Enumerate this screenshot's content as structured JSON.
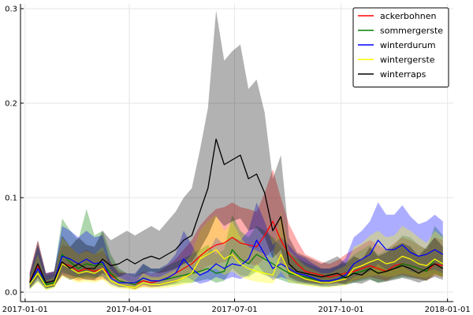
{
  "chart_data": {
    "type": "line",
    "title": "",
    "xlabel": "",
    "ylabel": "",
    "xlim": [
      "2016-12-28",
      "2018-01-06"
    ],
    "ylim": [
      -0.01,
      0.305
    ],
    "x_ticks": [
      "2017-01-01",
      "2017-04-01",
      "2017-07-01",
      "2017-10-01",
      "2018-01-01"
    ],
    "x_tick_labels": [
      "2017-01-01",
      "2017-04-01",
      "2017-07-01",
      "2017-10-01",
      "2018-01-01"
    ],
    "y_ticks": [
      0.0,
      0.1,
      0.2,
      0.3
    ],
    "y_tick_labels": [
      "0.0",
      "0.1",
      "0.2",
      "0.3"
    ],
    "grid": true,
    "legend_position": "top-right",
    "x": [
      "2017-01-05",
      "2017-01-12",
      "2017-01-19",
      "2017-01-26",
      "2017-02-02",
      "2017-02-09",
      "2017-02-16",
      "2017-02-23",
      "2017-03-02",
      "2017-03-09",
      "2017-03-16",
      "2017-03-23",
      "2017-03-30",
      "2017-04-06",
      "2017-04-13",
      "2017-04-20",
      "2017-04-27",
      "2017-05-04",
      "2017-05-11",
      "2017-05-18",
      "2017-05-25",
      "2017-06-01",
      "2017-06-08",
      "2017-06-15",
      "2017-06-22",
      "2017-06-29",
      "2017-07-06",
      "2017-07-13",
      "2017-07-20",
      "2017-07-27",
      "2017-08-03",
      "2017-08-10",
      "2017-08-17",
      "2017-08-24",
      "2017-08-31",
      "2017-09-07",
      "2017-09-14",
      "2017-09-21",
      "2017-09-28",
      "2017-10-05",
      "2017-10-12",
      "2017-10-19",
      "2017-10-26",
      "2017-11-02",
      "2017-11-09",
      "2017-11-16",
      "2017-11-23",
      "2017-11-30",
      "2017-12-07",
      "2017-12-14",
      "2017-12-21",
      "2017-12-28"
    ],
    "series": [
      {
        "name": "ackerbohnen",
        "color": "#ff0000",
        "values": [
          0.012,
          0.028,
          0.01,
          0.012,
          0.03,
          0.028,
          0.022,
          0.025,
          0.022,
          0.025,
          0.018,
          0.012,
          0.01,
          0.008,
          0.012,
          0.01,
          0.012,
          0.015,
          0.02,
          0.025,
          0.03,
          0.038,
          0.045,
          0.05,
          0.052,
          0.058,
          0.052,
          0.05,
          0.048,
          0.06,
          0.075,
          0.055,
          0.04,
          0.03,
          0.022,
          0.02,
          0.018,
          0.016,
          0.018,
          0.02,
          0.022,
          0.025,
          0.028,
          0.025,
          0.022,
          0.028,
          0.03,
          0.028,
          0.025,
          0.022,
          0.03,
          0.028
        ],
        "lower": [
          0.005,
          0.015,
          0.005,
          0.006,
          0.018,
          0.015,
          0.012,
          0.014,
          0.012,
          0.014,
          0.01,
          0.006,
          0.005,
          0.003,
          0.006,
          0.005,
          0.006,
          0.008,
          0.01,
          0.014,
          0.018,
          0.022,
          0.028,
          0.03,
          0.032,
          0.036,
          0.032,
          0.03,
          0.028,
          0.036,
          0.045,
          0.03,
          0.022,
          0.016,
          0.012,
          0.01,
          0.009,
          0.008,
          0.009,
          0.01,
          0.012,
          0.014,
          0.016,
          0.014,
          0.012,
          0.016,
          0.018,
          0.016,
          0.014,
          0.012,
          0.018,
          0.016
        ],
        "upper": [
          0.022,
          0.055,
          0.02,
          0.022,
          0.05,
          0.048,
          0.04,
          0.045,
          0.04,
          0.044,
          0.032,
          0.022,
          0.02,
          0.016,
          0.022,
          0.02,
          0.022,
          0.028,
          0.035,
          0.045,
          0.055,
          0.07,
          0.08,
          0.088,
          0.09,
          0.095,
          0.09,
          0.088,
          0.085,
          0.105,
          0.13,
          0.1,
          0.072,
          0.055,
          0.04,
          0.036,
          0.032,
          0.03,
          0.034,
          0.04,
          0.045,
          0.05,
          0.055,
          0.05,
          0.045,
          0.052,
          0.058,
          0.055,
          0.05,
          0.045,
          0.058,
          0.055
        ]
      },
      {
        "name": "sommergerste",
        "color": "#008000",
        "values": [
          0.008,
          0.025,
          0.008,
          0.01,
          0.04,
          0.032,
          0.025,
          0.03,
          0.028,
          0.03,
          0.02,
          0.012,
          0.01,
          0.008,
          0.015,
          0.012,
          0.012,
          0.014,
          0.016,
          0.018,
          0.02,
          0.022,
          0.025,
          0.02,
          0.022,
          0.045,
          0.035,
          0.03,
          0.04,
          0.035,
          0.03,
          0.025,
          0.02,
          0.018,
          0.016,
          0.014,
          0.012,
          0.012,
          0.014,
          0.016,
          0.02,
          0.022,
          0.025,
          0.02,
          0.022,
          0.025,
          0.03,
          0.028,
          0.025,
          0.022,
          0.035,
          0.03
        ],
        "lower": [
          0.003,
          0.012,
          0.003,
          0.005,
          0.022,
          0.018,
          0.014,
          0.016,
          0.015,
          0.016,
          0.01,
          0.006,
          0.005,
          0.003,
          0.008,
          0.006,
          0.006,
          0.007,
          0.008,
          0.01,
          0.01,
          0.012,
          0.014,
          0.01,
          0.012,
          0.025,
          0.018,
          0.016,
          0.022,
          0.018,
          0.016,
          0.013,
          0.01,
          0.009,
          0.008,
          0.007,
          0.006,
          0.006,
          0.007,
          0.008,
          0.01,
          0.012,
          0.014,
          0.01,
          0.012,
          0.014,
          0.016,
          0.015,
          0.014,
          0.012,
          0.02,
          0.016
        ],
        "upper": [
          0.018,
          0.05,
          0.018,
          0.02,
          0.078,
          0.065,
          0.055,
          0.088,
          0.06,
          0.065,
          0.04,
          0.025,
          0.02,
          0.018,
          0.03,
          0.025,
          0.025,
          0.028,
          0.032,
          0.036,
          0.04,
          0.045,
          0.05,
          0.04,
          0.045,
          0.082,
          0.065,
          0.058,
          0.07,
          0.065,
          0.058,
          0.048,
          0.04,
          0.036,
          0.032,
          0.028,
          0.025,
          0.025,
          0.028,
          0.032,
          0.04,
          0.045,
          0.05,
          0.04,
          0.045,
          0.05,
          0.06,
          0.058,
          0.05,
          0.045,
          0.07,
          0.06
        ]
      },
      {
        "name": "winterdurum",
        "color": "#0000ff",
        "values": [
          0.01,
          0.025,
          0.01,
          0.012,
          0.038,
          0.035,
          0.03,
          0.035,
          0.03,
          0.032,
          0.015,
          0.01,
          0.01,
          0.01,
          0.015,
          0.012,
          0.012,
          0.015,
          0.02,
          0.035,
          0.025,
          0.018,
          0.022,
          0.03,
          0.025,
          0.03,
          0.028,
          0.035,
          0.055,
          0.04,
          0.025,
          0.03,
          0.025,
          0.02,
          0.018,
          0.015,
          0.012,
          0.012,
          0.014,
          0.018,
          0.03,
          0.035,
          0.04,
          0.055,
          0.045,
          0.045,
          0.05,
          0.042,
          0.038,
          0.04,
          0.045,
          0.04
        ],
        "lower": [
          0.004,
          0.012,
          0.004,
          0.006,
          0.02,
          0.018,
          0.016,
          0.018,
          0.016,
          0.017,
          0.008,
          0.005,
          0.005,
          0.005,
          0.008,
          0.006,
          0.006,
          0.008,
          0.01,
          0.018,
          0.013,
          0.009,
          0.011,
          0.016,
          0.013,
          0.016,
          0.014,
          0.018,
          0.03,
          0.02,
          0.013,
          0.016,
          0.013,
          0.01,
          0.009,
          0.008,
          0.006,
          0.006,
          0.007,
          0.009,
          0.016,
          0.018,
          0.022,
          0.03,
          0.024,
          0.024,
          0.028,
          0.022,
          0.02,
          0.022,
          0.024,
          0.02
        ],
        "upper": [
          0.02,
          0.05,
          0.02,
          0.022,
          0.07,
          0.065,
          0.058,
          0.065,
          0.058,
          0.06,
          0.03,
          0.02,
          0.02,
          0.02,
          0.03,
          0.025,
          0.025,
          0.03,
          0.04,
          0.065,
          0.05,
          0.035,
          0.042,
          0.058,
          0.05,
          0.058,
          0.055,
          0.065,
          0.095,
          0.075,
          0.05,
          0.058,
          0.05,
          0.04,
          0.036,
          0.03,
          0.025,
          0.025,
          0.028,
          0.036,
          0.058,
          0.065,
          0.075,
          0.095,
          0.082,
          0.082,
          0.092,
          0.08,
          0.072,
          0.075,
          0.082,
          0.075
        ]
      },
      {
        "name": "wintergerste",
        "color": "#ffff00",
        "values": [
          0.008,
          0.02,
          0.006,
          0.008,
          0.03,
          0.025,
          0.02,
          0.022,
          0.02,
          0.025,
          0.012,
          0.008,
          0.006,
          0.005,
          0.01,
          0.008,
          0.008,
          0.01,
          0.012,
          0.015,
          0.02,
          0.035,
          0.04,
          0.045,
          0.035,
          0.04,
          0.03,
          0.025,
          0.022,
          0.02,
          0.018,
          0.04,
          0.022,
          0.018,
          0.014,
          0.012,
          0.01,
          0.01,
          0.012,
          0.014,
          0.025,
          0.028,
          0.032,
          0.035,
          0.03,
          0.032,
          0.038,
          0.035,
          0.03,
          0.028,
          0.035,
          0.03
        ],
        "lower": [
          0.003,
          0.01,
          0.002,
          0.004,
          0.016,
          0.013,
          0.01,
          0.011,
          0.01,
          0.013,
          0.006,
          0.004,
          0.003,
          0.002,
          0.005,
          0.004,
          0.004,
          0.005,
          0.006,
          0.008,
          0.01,
          0.018,
          0.022,
          0.025,
          0.018,
          0.022,
          0.016,
          0.013,
          0.011,
          0.01,
          0.009,
          0.022,
          0.011,
          0.009,
          0.007,
          0.006,
          0.005,
          0.005,
          0.006,
          0.007,
          0.013,
          0.015,
          0.017,
          0.018,
          0.016,
          0.017,
          0.02,
          0.018,
          0.016,
          0.015,
          0.018,
          0.016
        ],
        "upper": [
          0.016,
          0.04,
          0.012,
          0.016,
          0.058,
          0.048,
          0.04,
          0.044,
          0.04,
          0.048,
          0.024,
          0.016,
          0.012,
          0.01,
          0.02,
          0.016,
          0.016,
          0.02,
          0.024,
          0.03,
          0.04,
          0.065,
          0.075,
          0.082,
          0.065,
          0.075,
          0.058,
          0.048,
          0.044,
          0.04,
          0.036,
          0.085,
          0.044,
          0.036,
          0.028,
          0.024,
          0.02,
          0.02,
          0.024,
          0.028,
          0.048,
          0.052,
          0.06,
          0.065,
          0.058,
          0.06,
          0.07,
          0.065,
          0.058,
          0.052,
          0.065,
          0.058
        ]
      },
      {
        "name": "winterraps",
        "color": "#000000",
        "values": [
          0.01,
          0.03,
          0.01,
          0.012,
          0.032,
          0.025,
          0.03,
          0.025,
          0.025,
          0.035,
          0.028,
          0.03,
          0.035,
          0.03,
          0.035,
          0.038,
          0.035,
          0.04,
          0.045,
          0.055,
          0.06,
          0.085,
          0.11,
          0.162,
          0.135,
          0.14,
          0.145,
          0.12,
          0.125,
          0.105,
          0.065,
          0.08,
          0.03,
          0.022,
          0.02,
          0.018,
          0.016,
          0.018,
          0.02,
          0.015,
          0.02,
          0.018,
          0.025,
          0.02,
          0.022,
          0.025,
          0.028,
          0.025,
          0.02,
          0.025,
          0.03,
          0.025
        ],
        "lower": [
          0.004,
          0.016,
          0.004,
          0.006,
          0.018,
          0.013,
          0.016,
          0.013,
          0.013,
          0.02,
          0.015,
          0.016,
          0.02,
          0.016,
          0.02,
          0.022,
          0.02,
          0.022,
          0.025,
          0.03,
          0.032,
          0.045,
          0.06,
          0.08,
          0.07,
          0.075,
          0.078,
          0.065,
          0.068,
          0.058,
          0.036,
          0.045,
          0.016,
          0.012,
          0.01,
          0.009,
          0.008,
          0.009,
          0.01,
          0.008,
          0.01,
          0.009,
          0.013,
          0.01,
          0.011,
          0.013,
          0.015,
          0.013,
          0.01,
          0.013,
          0.016,
          0.013
        ],
        "upper": [
          0.02,
          0.055,
          0.02,
          0.022,
          0.06,
          0.048,
          0.058,
          0.05,
          0.048,
          0.065,
          0.055,
          0.06,
          0.065,
          0.06,
          0.065,
          0.07,
          0.065,
          0.075,
          0.085,
          0.1,
          0.11,
          0.15,
          0.195,
          0.298,
          0.245,
          0.255,
          0.262,
          0.215,
          0.225,
          0.19,
          0.12,
          0.145,
          0.058,
          0.042,
          0.038,
          0.034,
          0.03,
          0.034,
          0.038,
          0.03,
          0.038,
          0.034,
          0.048,
          0.038,
          0.042,
          0.048,
          0.052,
          0.048,
          0.038,
          0.048,
          0.058,
          0.048
        ]
      }
    ]
  }
}
